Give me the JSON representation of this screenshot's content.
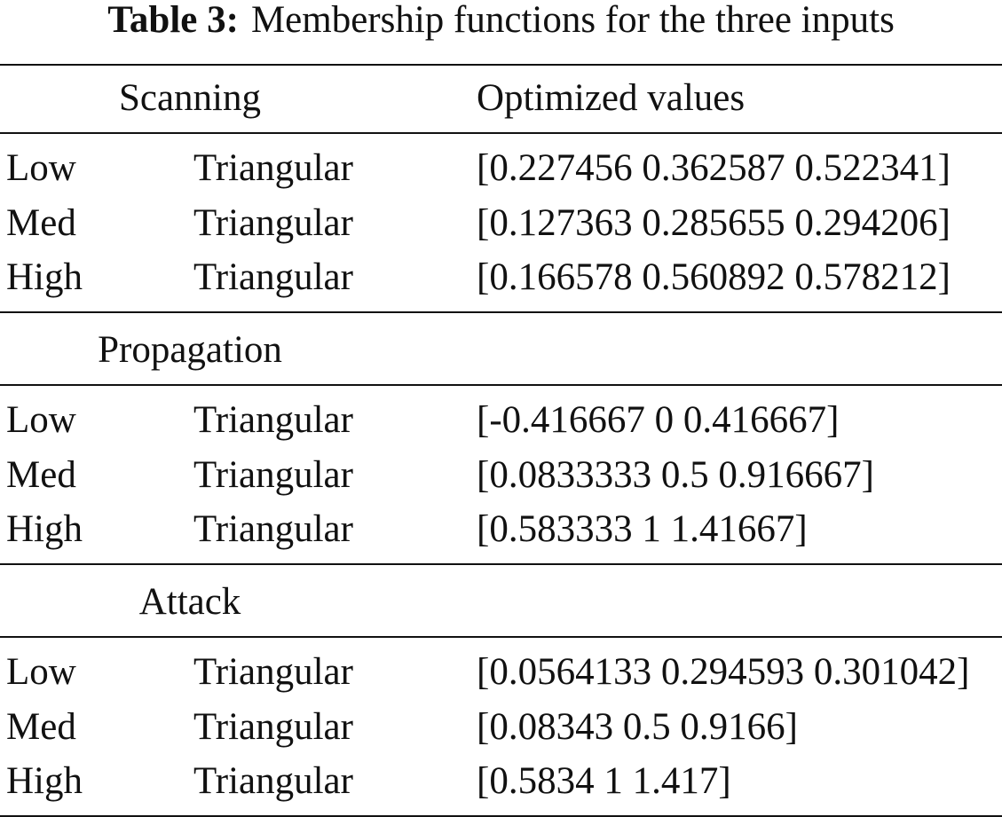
{
  "caption": {
    "label": "Table 3:",
    "text": "Membership functions for the three inputs"
  },
  "header": {
    "values": "Optimized values"
  },
  "sections": [
    {
      "name": "Scanning",
      "rows": [
        [
          "Low",
          "Triangular",
          "[0.227456 0.362587 0.522341]"
        ],
        [
          "Med",
          "Triangular",
          "[0.127363 0.285655 0.294206]"
        ],
        [
          "High",
          "Triangular",
          "[0.166578 0.560892 0.578212]"
        ]
      ]
    },
    {
      "name": "Propagation",
      "rows": [
        [
          "Low",
          "Triangular",
          "[-0.416667 0 0.416667]"
        ],
        [
          "Med",
          "Triangular",
          "[0.0833333 0.5 0.916667]"
        ],
        [
          "High",
          "Triangular",
          "[0.583333 1 1.41667]"
        ]
      ]
    },
    {
      "name": "Attack",
      "rows": [
        [
          "Low",
          "Triangular",
          "[0.0564133 0.294593 0.301042]"
        ],
        [
          "Med",
          "Triangular",
          "[0.08343 0.5 0.9166]"
        ],
        [
          "High",
          "Triangular",
          "[0.5834 1 1.417]"
        ]
      ]
    }
  ]
}
